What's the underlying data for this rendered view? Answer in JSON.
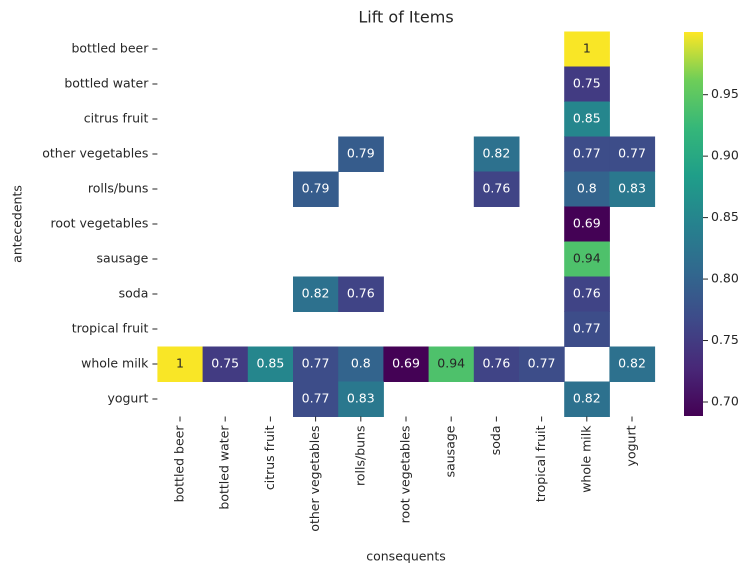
{
  "chart_data": {
    "type": "heatmap",
    "title": "Lift of Items",
    "xlabel": "consequents",
    "ylabel": "antecedents",
    "x_categories": [
      "bottled beer",
      "bottled water",
      "citrus fruit",
      "other vegetables",
      "rolls/buns",
      "root vegetables",
      "sausage",
      "soda",
      "tropical fruit",
      "whole milk",
      "yogurt"
    ],
    "y_categories": [
      "bottled beer",
      "bottled water",
      "citrus fruit",
      "other vegetables",
      "rolls/buns",
      "root vegetables",
      "sausage",
      "soda",
      "tropical fruit",
      "whole milk",
      "yogurt"
    ],
    "values": [
      [
        null,
        null,
        null,
        null,
        null,
        null,
        null,
        null,
        null,
        1,
        null
      ],
      [
        null,
        null,
        null,
        null,
        null,
        null,
        null,
        null,
        null,
        0.75,
        null
      ],
      [
        null,
        null,
        null,
        null,
        null,
        null,
        null,
        null,
        null,
        0.85,
        null
      ],
      [
        null,
        null,
        null,
        null,
        0.79,
        null,
        null,
        0.82,
        null,
        0.77,
        0.77
      ],
      [
        null,
        null,
        null,
        0.79,
        null,
        null,
        null,
        0.76,
        null,
        0.8,
        0.83
      ],
      [
        null,
        null,
        null,
        null,
        null,
        null,
        null,
        null,
        null,
        0.69,
        null
      ],
      [
        null,
        null,
        null,
        null,
        null,
        null,
        null,
        null,
        null,
        0.94,
        null
      ],
      [
        null,
        null,
        null,
        0.82,
        0.76,
        null,
        null,
        null,
        null,
        0.76,
        null
      ],
      [
        null,
        null,
        null,
        null,
        null,
        null,
        null,
        null,
        null,
        0.77,
        null
      ],
      [
        1,
        0.75,
        0.85,
        0.77,
        0.8,
        0.69,
        0.94,
        0.76,
        0.77,
        null,
        0.82
      ],
      [
        null,
        null,
        null,
        0.77,
        0.83,
        null,
        null,
        null,
        null,
        0.82,
        null
      ]
    ],
    "colormap": "viridis",
    "clim": [
      0.6886,
      1.001
    ],
    "cticks": [
      {
        "value": 0.7,
        "label": "0.70"
      },
      0.75,
      {
        "value": 0.8,
        "label": "0.80"
      },
      0.85,
      {
        "value": 0.9,
        "label": "0.90"
      },
      0.95
    ]
  }
}
